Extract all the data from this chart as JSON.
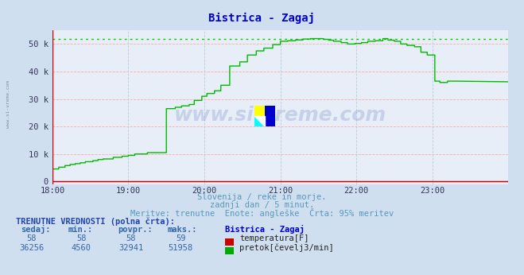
{
  "title": "Bistrica - Zagaj",
  "title_color": "#0000cc",
  "bg_color": "#d0dff0",
  "plot_bg_color": "#e8eef8",
  "grid_color_h": "#ffaaaa",
  "grid_color_v": "#bbccdd",
  "xlim": [
    0,
    360
  ],
  "ylim": [
    -1000,
    55000
  ],
  "yticks": [
    0,
    10000,
    20000,
    30000,
    40000,
    50000
  ],
  "ytick_labels": [
    "0",
    "10 k",
    "20 k",
    "30 k",
    "40 k",
    "50 k"
  ],
  "xtick_positions": [
    0,
    60,
    120,
    180,
    240,
    300
  ],
  "xtick_labels": [
    "18:00",
    "19:00",
    "20:00",
    "21:00",
    "22:00",
    "23:00"
  ],
  "watermark": "www.si-vreme.com",
  "subtitle1": "Slovenija / reke in morje.",
  "subtitle2": "zadnji dan / 5 minut.",
  "subtitle3": "Meritve: trenutne  Enote: angleške  Črta: 95% meritev",
  "subtitle_color": "#5599bb",
  "table_title": "TRENUTNE VREDNOSTI (polna črta):",
  "table_headers": [
    "sedaj:",
    "min.:",
    "povpr.:",
    "maks.:"
  ],
  "table_header_color": "#3366aa",
  "col_title": "Bistrica - Zagaj",
  "row1": [
    "58",
    "58",
    "58",
    "59"
  ],
  "row1_color": "#cc0000",
  "row1_label": "temperatura[F]",
  "row2": [
    "36256",
    "4560",
    "32941",
    "51958"
  ],
  "row2_color": "#00aa00",
  "row2_label": "pretok[čevelj3/min]",
  "temp_line_color": "#cc0000",
  "flow_line_color": "#00bb00",
  "max_line_color": "#00cc00",
  "max_flow_value": 51958,
  "flow_x": [
    0,
    5,
    5,
    10,
    10,
    14,
    14,
    18,
    18,
    22,
    22,
    26,
    26,
    32,
    32,
    36,
    36,
    40,
    40,
    48,
    48,
    55,
    55,
    60,
    60,
    65,
    65,
    75,
    75,
    90,
    90,
    97,
    97,
    102,
    102,
    108,
    108,
    112,
    112,
    118,
    118,
    122,
    122,
    128,
    128,
    133,
    133,
    140,
    140,
    148,
    148,
    154,
    154,
    161,
    161,
    167,
    167,
    174,
    174,
    180,
    180,
    186,
    186,
    192,
    192,
    198,
    198,
    204,
    204,
    208,
    208,
    214,
    214,
    218,
    218,
    222,
    222,
    228,
    228,
    233,
    233,
    239,
    239,
    244,
    244,
    249,
    249,
    255,
    255,
    261,
    261,
    265,
    265,
    270,
    270,
    275,
    275,
    280,
    280,
    286,
    286,
    291,
    291,
    296,
    296,
    302,
    302,
    306,
    306,
    312,
    312,
    318,
    318,
    360
  ],
  "flow_y": [
    4560,
    4560,
    5200,
    5200,
    5800,
    5800,
    6200,
    6200,
    6500,
    6500,
    6800,
    6800,
    7200,
    7200,
    7600,
    7600,
    8000,
    8000,
    8200,
    8200,
    8800,
    8800,
    9200,
    9200,
    9500,
    9500,
    10000,
    10000,
    10500,
    10500,
    26500,
    26500,
    27000,
    27000,
    27500,
    27500,
    28000,
    28000,
    29500,
    29500,
    31000,
    31000,
    32000,
    32000,
    33000,
    33000,
    35000,
    35000,
    42000,
    42000,
    43500,
    43500,
    46000,
    46000,
    47500,
    47500,
    48500,
    48500,
    49800,
    49800,
    51000,
    51000,
    51200,
    51200,
    51500,
    51500,
    51800,
    51800,
    51958,
    51958,
    51958,
    51958,
    51700,
    51700,
    51400,
    51400,
    51000,
    51000,
    50500,
    50500,
    50000,
    50000,
    50200,
    50200,
    50500,
    50500,
    51000,
    51000,
    51200,
    51200,
    51958,
    51958,
    51400,
    51400,
    51000,
    51000,
    50000,
    50000,
    49500,
    49500,
    49000,
    49000,
    47000,
    47000,
    46000,
    46000,
    36500,
    36500,
    36000,
    36000,
    36500,
    36500,
    36500,
    36256
  ]
}
